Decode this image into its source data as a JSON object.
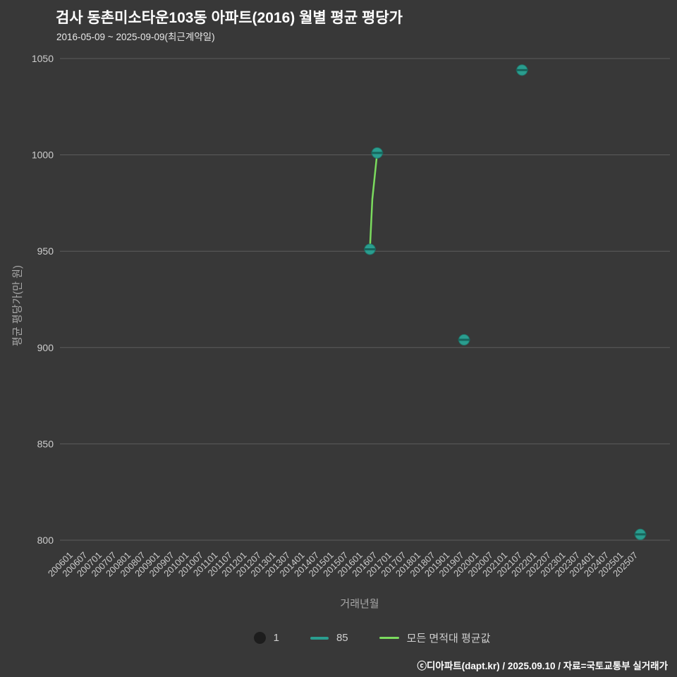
{
  "title": "검사 동촌미소타운103동 아파트(2016) 월별 평균 평당가",
  "subtitle": "2016-05-09 ~ 2025-09-09(최근계약일)",
  "footer": "ⓒ디아파트(dapt.kr) / 2025.09.10 / 자료=국토교통부 실거래가",
  "colors": {
    "background": "#383838",
    "grid": "#5c5c5c",
    "tick_text": "#cccccc",
    "axis_label_text": "#a8a8a8",
    "title_text": "#ffffff",
    "subtitle_text": "#e8e8e8",
    "marker_fill": "#2a9d8f",
    "marker_edge": "#1f7a6e",
    "marker_dash": "#17655c",
    "avg_line": "#7bdb5e",
    "count_marker": "#1d1d1d",
    "legend_text": "#cfcfcf",
    "footer_text": "#ffffff"
  },
  "chart_data": {
    "type": "scatter",
    "title": "검사 동촌미소타운103동 아파트(2016) 월별 평균 평당가",
    "xlabel": "거래년월",
    "ylabel": "평균 평당가(만 원)",
    "ylim": [
      800,
      1050
    ],
    "y_ticks": [
      1050,
      1000,
      950,
      900,
      850,
      800
    ],
    "x_domain_months": [
      "200601",
      "202509"
    ],
    "grid": "horizontal",
    "legend_position": "bottom",
    "x_tick_labels": [
      "200601",
      "200607",
      "200701",
      "200707",
      "200801",
      "200807",
      "200901",
      "200907",
      "201001",
      "201007",
      "201101",
      "201107",
      "201201",
      "201207",
      "201301",
      "201307",
      "201401",
      "201407",
      "201501",
      "201507",
      "201601",
      "201607",
      "201701",
      "201707",
      "201801",
      "201807",
      "201901",
      "201907",
      "202001",
      "202007",
      "202101",
      "202107",
      "202201",
      "202207",
      "202301",
      "202307",
      "202401",
      "202407",
      "202501",
      "202507"
    ],
    "series": [
      {
        "name": "85",
        "type": "scatter",
        "points": [
          {
            "x": "201605",
            "y": 951
          },
          {
            "x": "201608",
            "y": 1001
          },
          {
            "x": "201908",
            "y": 904
          },
          {
            "x": "202108",
            "y": 1044
          },
          {
            "x": "202509",
            "y": 803
          }
        ]
      },
      {
        "name": "모든 면적대 평균값",
        "type": "line",
        "points": [
          {
            "x": "201605",
            "y": 951
          },
          {
            "x": "201606",
            "y": 977
          },
          {
            "x": "201608",
            "y": 1001
          }
        ]
      }
    ],
    "legend": [
      {
        "label": "1",
        "marker": "count"
      },
      {
        "label": "85",
        "marker": "dash"
      },
      {
        "label": "모든 면적대 평균값",
        "marker": "line"
      }
    ]
  }
}
